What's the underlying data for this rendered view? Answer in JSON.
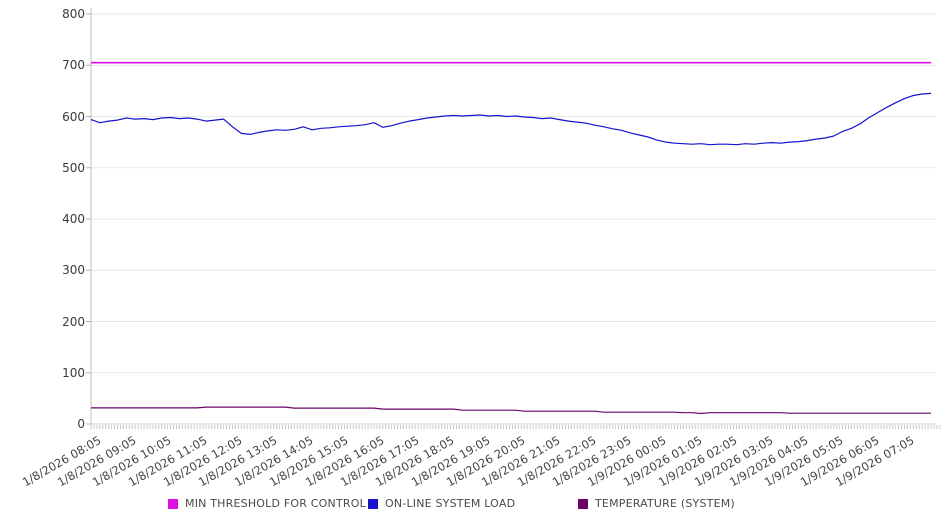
{
  "chart_data": {
    "type": "line",
    "title": "",
    "x_axis": {
      "labels": [
        "1/8/2026 08:05",
        "1/8/2026 09:05",
        "1/8/2026 10:05",
        "1/8/2026 11:05",
        "1/8/2026 12:05",
        "1/8/2026 13:05",
        "1/8/2026 14:05",
        "1/8/2026 15:05",
        "1/8/2026 16:05",
        "1/8/2026 17:05",
        "1/8/2026 18:05",
        "1/8/2026 19:05",
        "1/8/2026 20:05",
        "1/8/2026 21:05",
        "1/8/2026 22:05",
        "1/8/2026 23:05",
        "1/9/2026 00:05",
        "1/9/2026 01:05",
        "1/9/2026 02:05",
        "1/9/2026 03:05",
        "1/9/2026 04:05",
        "1/9/2026 05:05",
        "1/9/2026 06:05",
        "1/9/2026 07:05"
      ],
      "label_interval_min": 60,
      "minor_tick_interval_min": 5,
      "total_span_min": 1440
    },
    "y_axis": {
      "min": 0,
      "max": 800,
      "tick_step": 100,
      "ticks": [
        800,
        700,
        600,
        500,
        400,
        300,
        200,
        100,
        0
      ]
    },
    "grid": true,
    "legend_position": "bottom",
    "sample_interval_min": 15,
    "series": [
      {
        "name": "MIN THRESHOLD FOR CONTROL",
        "color": "#E00EE0",
        "style": "hline",
        "value": 705
      },
      {
        "name": "ON-LINE SYSTEM LOAD",
        "color": "#1414CC",
        "style": "line",
        "values": [
          594,
          588,
          591,
          593,
          597,
          595,
          596,
          594,
          597,
          598,
          596,
          597,
          595,
          591,
          593,
          595,
          580,
          567,
          565,
          569,
          572,
          574,
          573,
          575,
          580,
          574,
          577,
          578,
          580,
          581,
          582,
          584,
          588,
          579,
          582,
          587,
          591,
          594,
          597,
          599,
          601,
          602,
          601,
          602,
          603,
          601,
          602,
          600,
          601,
          599,
          598,
          596,
          597,
          594,
          591,
          589,
          587,
          583,
          580,
          576,
          573,
          568,
          564,
          560,
          554,
          550,
          548,
          547,
          546,
          547,
          545,
          546,
          546,
          545,
          547,
          546,
          548,
          549,
          548,
          550,
          551,
          553,
          556,
          558,
          562,
          571,
          577,
          586,
          598,
          608,
          618,
          627,
          635,
          641,
          644,
          645
        ]
      },
      {
        "name": "TEMPERATURE (SYSTEM)",
        "color": "#6B046B",
        "style": "line",
        "values": [
          31.5,
          31.5,
          31.5,
          31.5,
          31.5,
          31.5,
          31.5,
          31.5,
          31.5,
          31.5,
          31.5,
          31.5,
          31.5,
          33,
          33,
          33,
          33,
          33,
          33,
          33,
          33,
          33,
          33,
          31,
          31,
          31,
          31,
          31,
          31,
          31,
          31,
          31,
          31,
          29,
          29,
          29,
          29,
          29,
          29,
          29,
          29,
          29,
          27,
          27,
          27,
          27,
          27,
          27,
          27,
          25,
          25,
          25,
          25,
          25,
          25,
          25,
          25,
          25,
          23,
          23,
          23,
          23,
          23,
          23,
          23,
          23,
          23,
          22,
          22,
          20.5,
          22,
          22,
          22,
          22,
          22,
          22,
          22,
          22,
          22,
          21,
          21,
          21,
          21,
          21,
          21,
          21,
          21,
          21,
          21,
          21,
          21,
          21,
          21,
          21,
          21,
          21
        ]
      }
    ]
  }
}
